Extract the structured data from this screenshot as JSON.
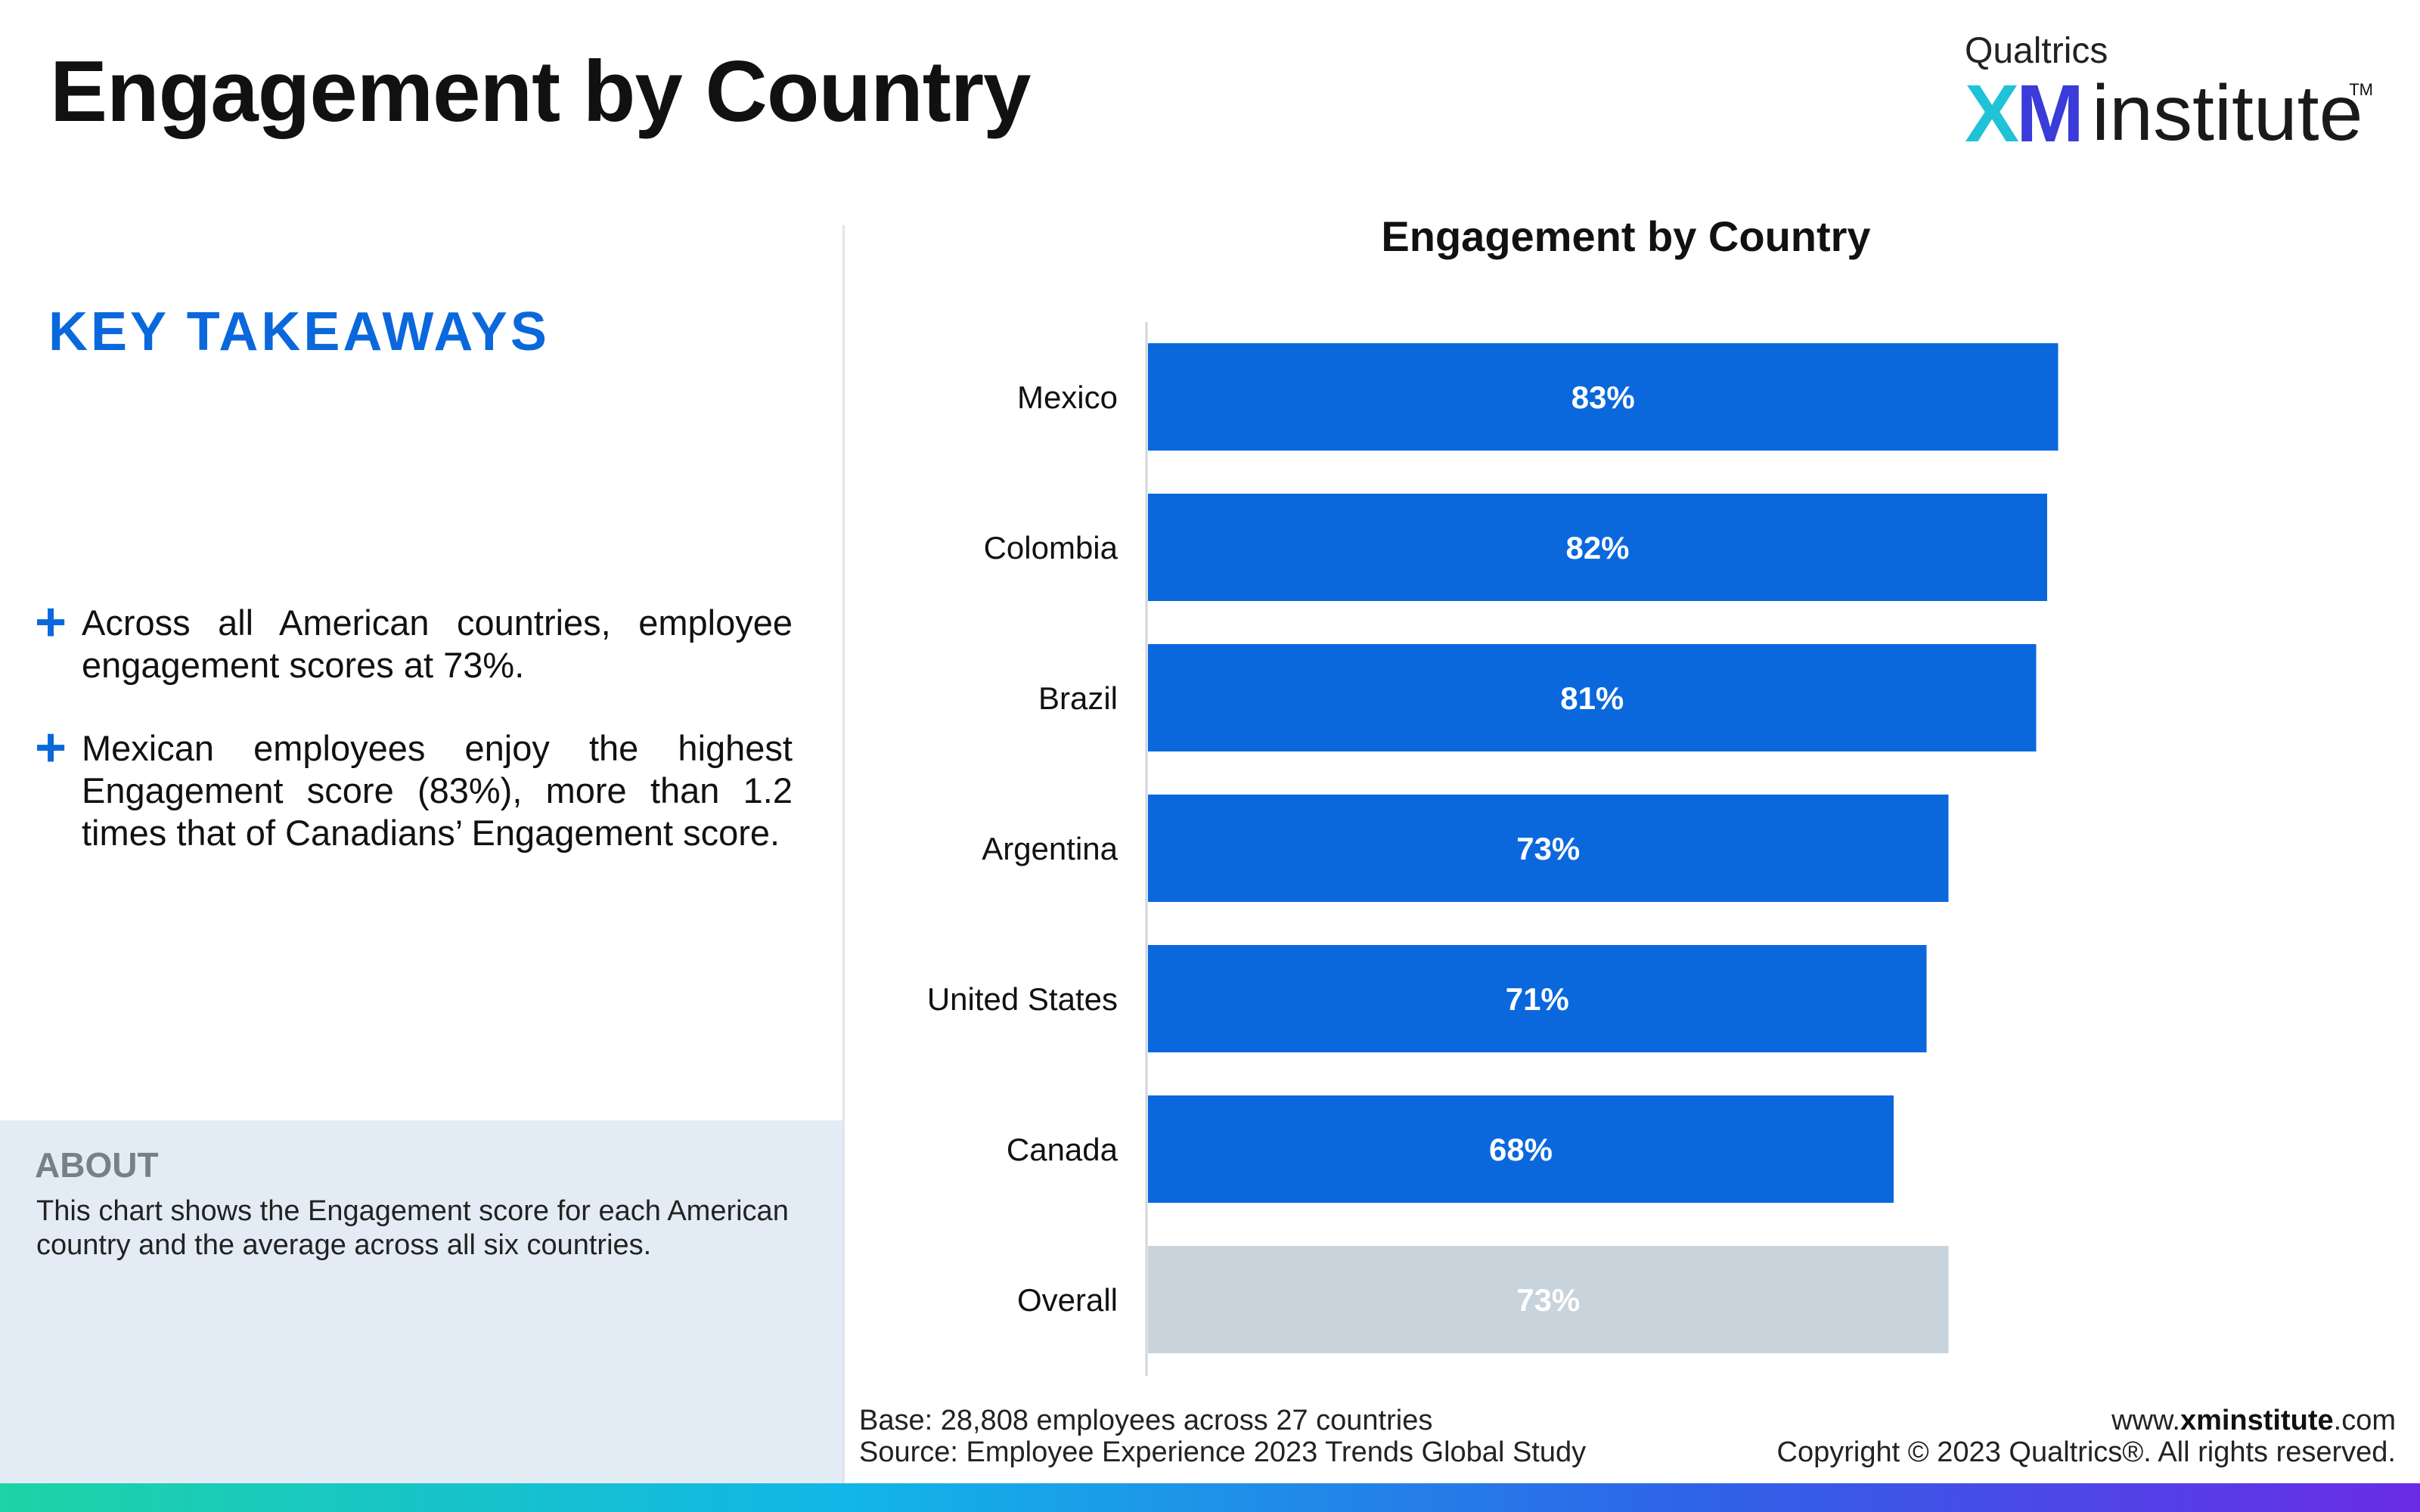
{
  "page": {
    "title": "Engagement by Country"
  },
  "logo": {
    "brand": "Qualtrics",
    "xm_x": "X",
    "xm_m": "M",
    "institute": "institute",
    "tm": "TM"
  },
  "takeaways": {
    "heading": "KEY TAKEAWAYS",
    "bullet_symbol": "+",
    "items": [
      "Across all American countries, employee engagement scores at 73%.",
      "Mexican employees enjoy the highest Engagement score (83%), more than 1.2 times that of Canadians’ Engagement score."
    ]
  },
  "about": {
    "heading": "ABOUT",
    "text": "This chart shows the Engagement score for each American country and the average across all six countries."
  },
  "chart_data": {
    "type": "bar",
    "orientation": "horizontal",
    "title": "Engagement by Country",
    "categories": [
      "Mexico",
      "Colombia",
      "Brazil",
      "Argentina",
      "United States",
      "Canada",
      "Overall"
    ],
    "values": [
      83,
      82,
      81,
      73,
      71,
      68,
      73
    ],
    "value_labels": [
      "83%",
      "82%",
      "81%",
      "73%",
      "71%",
      "68%",
      "73%"
    ],
    "xlim": [
      0,
      100
    ],
    "grid": false,
    "colors": {
      "bar": "#0a68dc",
      "overall_bar": "#c8d3db",
      "label_text": "#ffffff",
      "axis": "#cfd6dd"
    }
  },
  "footer": {
    "base": "Base: 28,808 employees across 27 countries",
    "source": "Source: Employee Experience 2023 Trends Global Study",
    "url_prefix": "www.",
    "url_bold": "xminstitute",
    "url_suffix": ".com",
    "copyright": "Copyright © 2023 Qualtrics®. All rights reserved."
  }
}
